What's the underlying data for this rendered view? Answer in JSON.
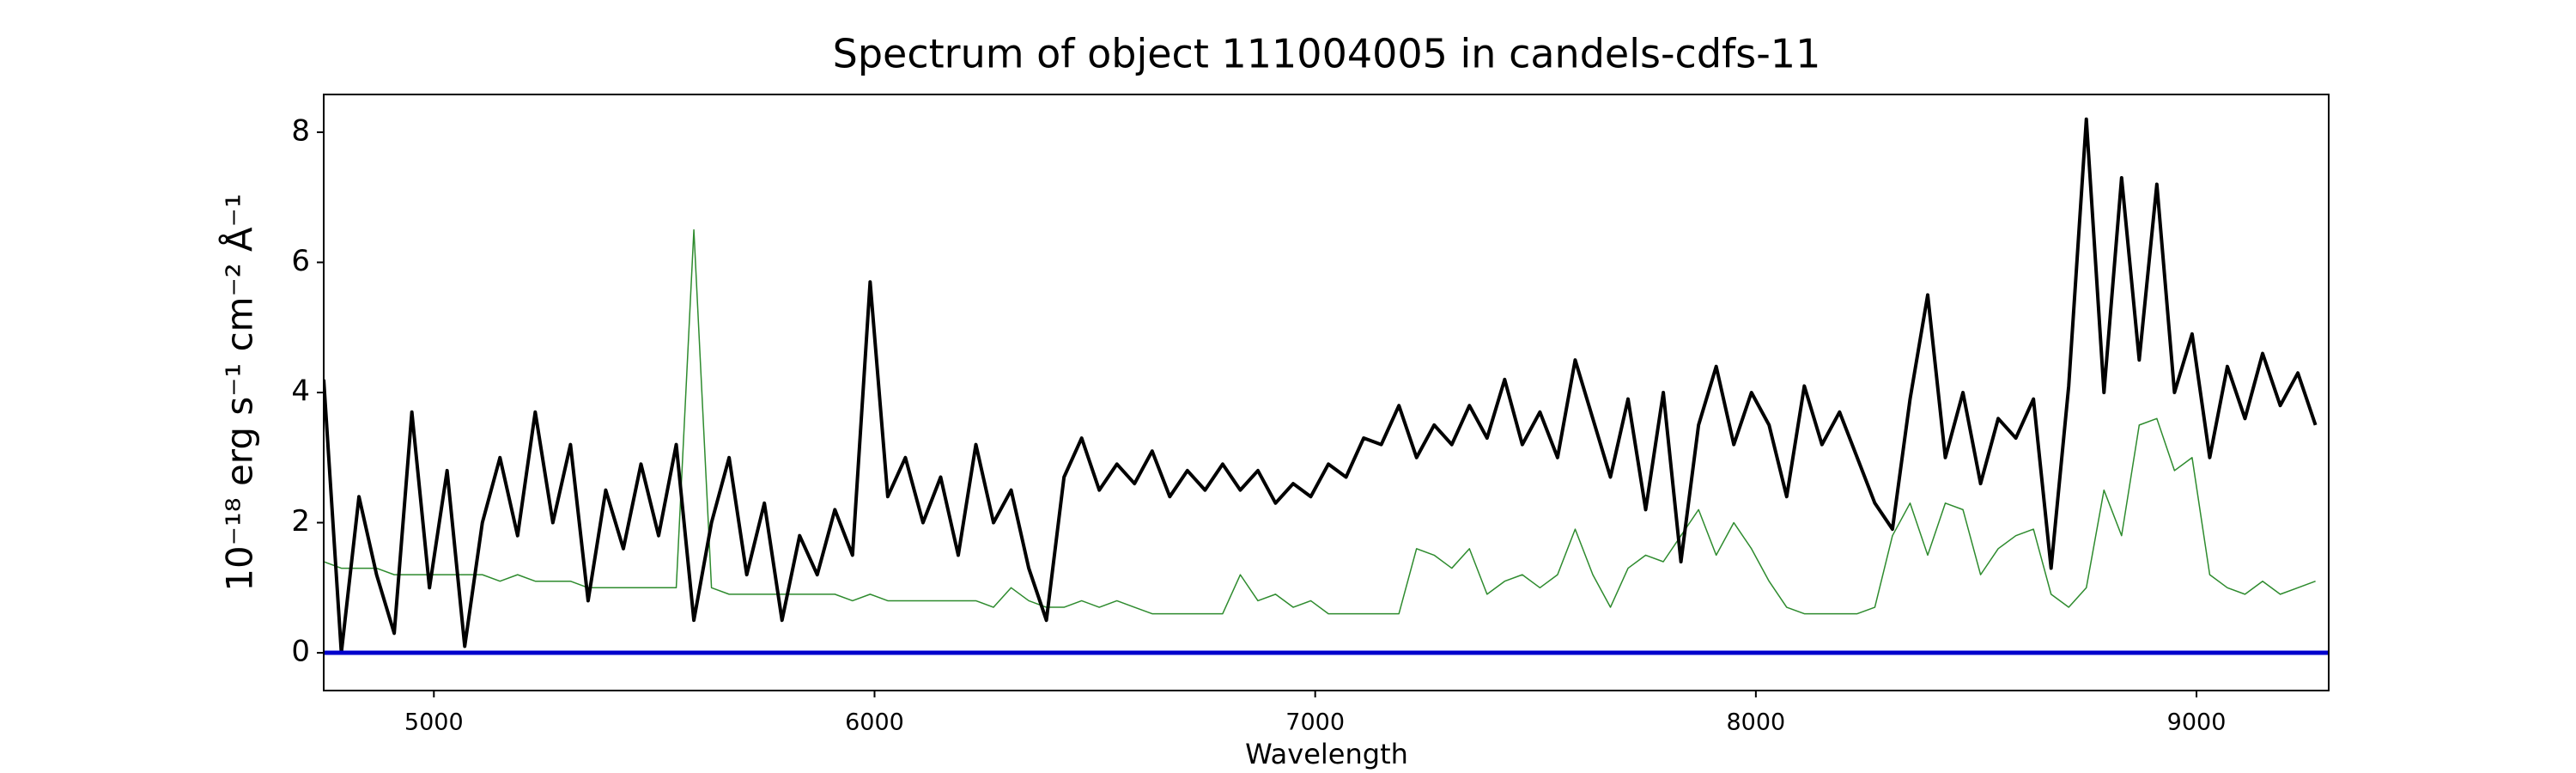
{
  "chart_data": {
    "type": "line",
    "title": "Spectrum of object 111004005 in candels-cdfs-11",
    "xlabel": "Wavelength",
    "ylabel": "10⁻¹⁸ erg s⁻¹ cm⁻² Å⁻¹",
    "x": [
      4750,
      4790,
      4830,
      4870,
      4910,
      4950,
      4990,
      5030,
      5070,
      5110,
      5150,
      5190,
      5230,
      5270,
      5310,
      5350,
      5390,
      5430,
      5470,
      5510,
      5550,
      5590,
      5630,
      5670,
      5710,
      5750,
      5790,
      5830,
      5870,
      5910,
      5950,
      5990,
      6030,
      6070,
      6110,
      6150,
      6190,
      6230,
      6270,
      6310,
      6350,
      6390,
      6430,
      6470,
      6510,
      6550,
      6590,
      6630,
      6670,
      6710,
      6750,
      6790,
      6830,
      6870,
      6910,
      6950,
      6990,
      7030,
      7070,
      7110,
      7150,
      7190,
      7230,
      7270,
      7310,
      7350,
      7390,
      7430,
      7470,
      7510,
      7550,
      7590,
      7630,
      7670,
      7710,
      7750,
      7790,
      7830,
      7870,
      7910,
      7950,
      7990,
      8030,
      8070,
      8110,
      8150,
      8190,
      8230,
      8270,
      8310,
      8350,
      8390,
      8430,
      8470,
      8510,
      8550,
      8590,
      8630,
      8670,
      8710,
      8750,
      8790,
      8830,
      8870,
      8910,
      8950,
      8990,
      9030,
      9070,
      9110,
      9150,
      9190,
      9230,
      9270
    ],
    "series": [
      {
        "color": "#000000",
        "values": [
          4.2,
          0.0,
          2.4,
          1.2,
          0.3,
          3.7,
          1.0,
          2.8,
          0.1,
          2.0,
          3.0,
          1.8,
          3.7,
          2.0,
          3.2,
          0.8,
          2.5,
          1.6,
          2.9,
          1.8,
          3.2,
          0.5,
          2.0,
          3.0,
          1.2,
          2.3,
          0.5,
          1.8,
          1.2,
          2.2,
          1.5,
          5.7,
          2.4,
          3.0,
          2.0,
          2.7,
          1.5,
          3.2,
          2.0,
          2.5,
          1.3,
          0.5,
          2.7,
          3.3,
          2.5,
          2.9,
          2.6,
          3.1,
          2.4,
          2.8,
          2.5,
          2.9,
          2.5,
          2.8,
          2.3,
          2.6,
          2.4,
          2.9,
          2.7,
          3.3,
          3.2,
          3.8,
          3.0,
          3.5,
          3.2,
          3.8,
          3.3,
          4.2,
          3.2,
          3.7,
          3.0,
          4.5,
          3.6,
          2.7,
          3.9,
          2.2,
          4.0,
          1.4,
          3.5,
          4.4,
          3.2,
          4.0,
          3.5,
          2.4,
          4.1,
          3.2,
          3.7,
          3.0,
          2.3,
          1.9,
          3.9,
          5.5,
          3.0,
          4.0,
          2.6,
          3.6,
          3.3,
          3.9,
          1.3,
          4.1,
          8.2,
          4.0,
          7.3,
          4.5,
          7.2,
          4.0,
          4.9,
          3.0,
          4.4,
          3.6,
          4.6,
          3.8,
          4.3,
          3.5
        ]
      },
      {
        "color": "#2e8b2e",
        "values": [
          1.4,
          1.3,
          1.3,
          1.3,
          1.2,
          1.2,
          1.2,
          1.2,
          1.2,
          1.2,
          1.1,
          1.2,
          1.1,
          1.1,
          1.1,
          1.0,
          1.0,
          1.0,
          1.0,
          1.0,
          1.0,
          6.5,
          1.0,
          0.9,
          0.9,
          0.9,
          0.9,
          0.9,
          0.9,
          0.9,
          0.8,
          0.9,
          0.8,
          0.8,
          0.8,
          0.8,
          0.8,
          0.8,
          0.7,
          1.0,
          0.8,
          0.7,
          0.7,
          0.8,
          0.7,
          0.8,
          0.7,
          0.6,
          0.6,
          0.6,
          0.6,
          0.6,
          1.2,
          0.8,
          0.9,
          0.7,
          0.8,
          0.6,
          0.6,
          0.6,
          0.6,
          0.6,
          1.6,
          1.5,
          1.3,
          1.6,
          0.9,
          1.1,
          1.2,
          1.0,
          1.2,
          1.9,
          1.2,
          0.7,
          1.3,
          1.5,
          1.4,
          1.8,
          2.2,
          1.5,
          2.0,
          1.6,
          1.1,
          0.7,
          0.6,
          0.6,
          0.6,
          0.6,
          0.7,
          1.8,
          2.3,
          1.5,
          2.3,
          2.2,
          1.2,
          1.6,
          1.8,
          1.9,
          0.9,
          0.7,
          1.0,
          2.5,
          1.8,
          3.5,
          3.6,
          2.8,
          3.0,
          1.2,
          1.0,
          0.9,
          1.1,
          0.9,
          1.0,
          1.1
        ]
      },
      {
        "color": "#0000cc",
        "x": [
          4750,
          9300
        ],
        "values": [
          0,
          0
        ]
      }
    ],
    "xlim": [
      4750,
      9300
    ],
    "ylim": [
      -0.58,
      8.58
    ],
    "xticks": [
      5000,
      6000,
      7000,
      8000,
      9000
    ],
    "yticks": [
      0,
      2,
      4,
      6,
      8
    ]
  }
}
